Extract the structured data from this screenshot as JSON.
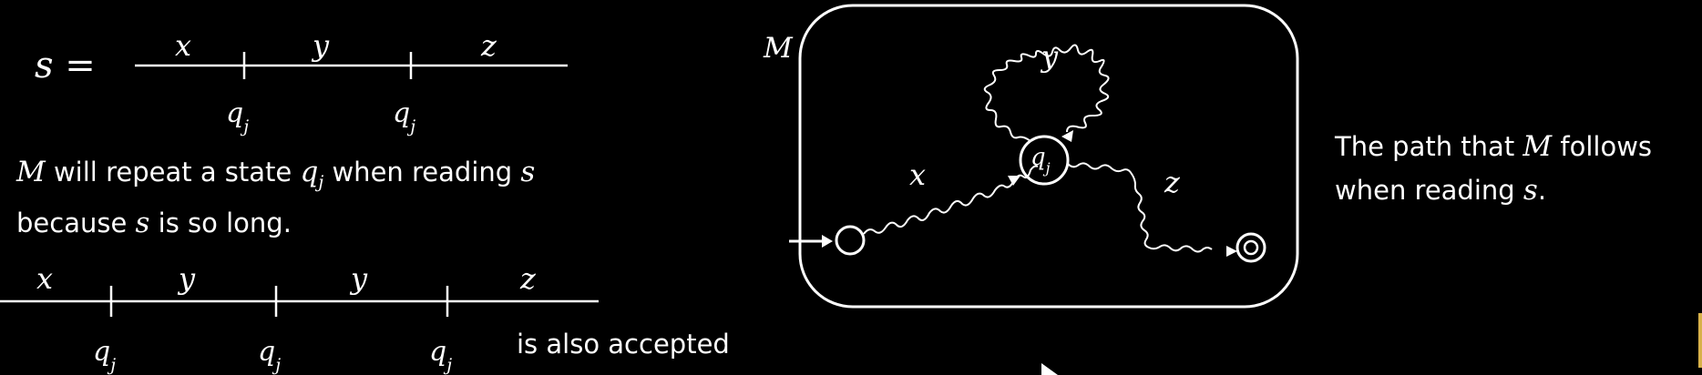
{
  "left": {
    "s_label": "s =",
    "top_segments": [
      "x",
      "y",
      "z"
    ],
    "top_marks": [
      "q",
      "q"
    ],
    "mark_subscript": "j",
    "line1": {
      "m": "M",
      "a": " will repeat a state ",
      "q": "q",
      "sub": "j",
      "b": " when reading ",
      "s": "s"
    },
    "line2": {
      "a": "because ",
      "s": "s",
      "b": " is so long."
    },
    "bottom_segments": [
      "x",
      "y",
      "y",
      "z"
    ],
    "bottom_marks": [
      "q",
      "q",
      "q"
    ],
    "also_accepted": "is also accepted"
  },
  "machine": {
    "label": "M",
    "edge_labels": {
      "x": "x",
      "y": "y",
      "z": "z"
    },
    "state_label": "q",
    "state_subscript": "j"
  },
  "caption": {
    "line1": {
      "a": "The path that ",
      "m": "M",
      "b": " follows"
    },
    "line2": {
      "a": "when reading ",
      "s": "s",
      "b": "."
    }
  },
  "colors": {
    "background": "#000000",
    "foreground": "#ffffff"
  }
}
